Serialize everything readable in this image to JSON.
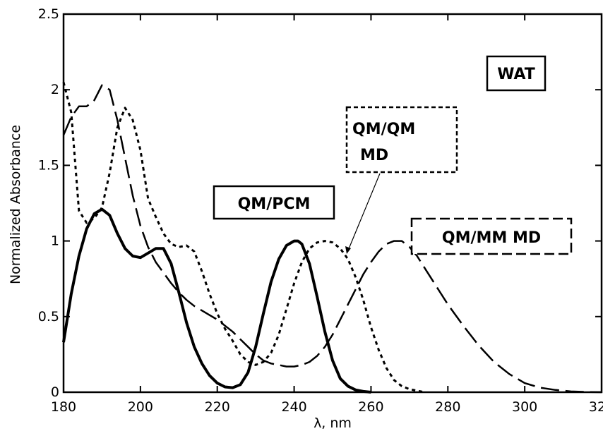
{
  "chart_data": {
    "type": "line",
    "title": "",
    "xlabel": "λ, nm",
    "ylabel": "Normalized Absorbance",
    "xlim": [
      180,
      320
    ],
    "ylim": [
      0,
      2.5
    ],
    "x_ticks": [
      "180",
      "200",
      "220",
      "240",
      "260",
      "280",
      "300",
      "320"
    ],
    "y_ticks": [
      "0",
      "0.5",
      "1",
      "1.5",
      "2",
      "2.5"
    ],
    "grid": false,
    "legend": "none",
    "panel_label": "WAT",
    "series": [
      {
        "name": "QM/PCM",
        "style": "solid",
        "x": [
          180,
          182,
          184,
          186,
          188,
          190,
          192,
          194,
          196,
          198,
          200,
          202,
          204,
          206,
          208,
          210,
          212,
          214,
          216,
          218,
          220,
          222,
          224,
          226,
          228,
          230,
          232,
          234,
          236,
          238,
          240,
          241,
          242,
          244,
          246,
          248,
          250,
          252,
          254,
          256,
          258,
          260
        ],
        "y": [
          0.33,
          0.65,
          0.9,
          1.08,
          1.18,
          1.21,
          1.17,
          1.05,
          0.95,
          0.9,
          0.89,
          0.92,
          0.95,
          0.95,
          0.85,
          0.66,
          0.46,
          0.3,
          0.19,
          0.11,
          0.06,
          0.035,
          0.03,
          0.05,
          0.13,
          0.3,
          0.52,
          0.73,
          0.88,
          0.97,
          1.0,
          1.0,
          0.98,
          0.85,
          0.63,
          0.4,
          0.21,
          0.09,
          0.04,
          0.015,
          0.005,
          0.0
        ]
      },
      {
        "name": "QM/QM MD",
        "style": "short-dash",
        "x": [
          180,
          182,
          184,
          186,
          188,
          190,
          192,
          194,
          196,
          198,
          200,
          202,
          204,
          206,
          208,
          210,
          212,
          214,
          216,
          218,
          220,
          222,
          224,
          226,
          228,
          230,
          232,
          234,
          236,
          238,
          240,
          242,
          244,
          246,
          248,
          250,
          252,
          254,
          256,
          258,
          260,
          262,
          264,
          266,
          268,
          270,
          272,
          274
        ],
        "y": [
          2.05,
          1.85,
          1.2,
          1.12,
          1.15,
          1.22,
          1.45,
          1.75,
          1.88,
          1.8,
          1.6,
          1.28,
          1.16,
          1.05,
          0.98,
          0.96,
          0.97,
          0.93,
          0.8,
          0.65,
          0.52,
          0.42,
          0.34,
          0.25,
          0.2,
          0.18,
          0.2,
          0.26,
          0.38,
          0.55,
          0.72,
          0.86,
          0.95,
          0.99,
          1.0,
          0.99,
          0.95,
          0.88,
          0.76,
          0.61,
          0.43,
          0.28,
          0.16,
          0.08,
          0.04,
          0.02,
          0.01,
          0.0
        ]
      },
      {
        "name": "QM/MM MD",
        "style": "long-dash",
        "x": [
          180,
          182,
          184,
          186,
          188,
          190,
          192,
          194,
          196,
          198,
          200,
          202,
          204,
          206,
          208,
          210,
          212,
          214,
          216,
          218,
          220,
          222,
          224,
          226,
          228,
          230,
          232,
          234,
          236,
          238,
          240,
          242,
          244,
          246,
          248,
          250,
          252,
          254,
          256,
          258,
          260,
          262,
          264,
          266,
          268,
          270,
          272,
          274,
          276,
          278,
          280,
          284,
          288,
          292,
          296,
          300,
          304,
          308,
          312,
          316,
          320
        ],
        "y": [
          1.7,
          1.82,
          1.89,
          1.89,
          1.93,
          2.03,
          2.0,
          1.8,
          1.55,
          1.3,
          1.1,
          0.96,
          0.86,
          0.79,
          0.72,
          0.66,
          0.61,
          0.57,
          0.54,
          0.51,
          0.48,
          0.44,
          0.4,
          0.35,
          0.3,
          0.25,
          0.21,
          0.19,
          0.18,
          0.17,
          0.17,
          0.18,
          0.2,
          0.24,
          0.3,
          0.38,
          0.48,
          0.58,
          0.68,
          0.78,
          0.86,
          0.93,
          0.98,
          1.0,
          1.0,
          0.96,
          0.9,
          0.82,
          0.74,
          0.66,
          0.58,
          0.44,
          0.31,
          0.2,
          0.12,
          0.06,
          0.03,
          0.015,
          0.005,
          0.002,
          0.0
        ]
      }
    ],
    "annotations": [
      {
        "label": "WAT",
        "box_style": "solid"
      },
      {
        "label": "QM/QM",
        "label2": "MD",
        "box_style": "dashed"
      },
      {
        "label": "QM/PCM",
        "box_style": "solid"
      },
      {
        "label": "QM/MM MD",
        "box_style": "long-dashed"
      }
    ]
  }
}
